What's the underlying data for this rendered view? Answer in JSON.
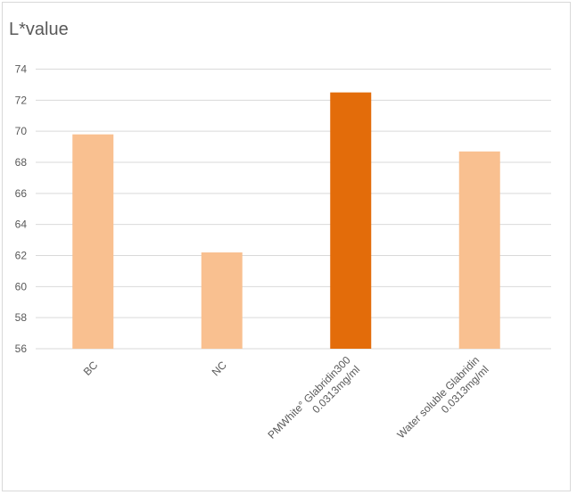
{
  "chart_data": {
    "type": "bar",
    "title": "L*value",
    "categories": [
      [
        "BC"
      ],
      [
        "NC"
      ],
      [
        "PMWhite° Glabridin300",
        "0.0313mg/ml"
      ],
      [
        "Water soluble Glabridin",
        "0.0313mg/ml"
      ]
    ],
    "values": [
      69.8,
      62.2,
      72.5,
      68.7
    ],
    "ylim": [
      56,
      74
    ],
    "yticks": [
      56,
      58,
      60,
      62,
      64,
      66,
      68,
      70,
      72,
      74
    ],
    "grid": true,
    "highlight_index": 2,
    "colors": {
      "bar": "#f9c090",
      "highlight": "#e36c0a",
      "grid": "#d9d9d9"
    }
  }
}
